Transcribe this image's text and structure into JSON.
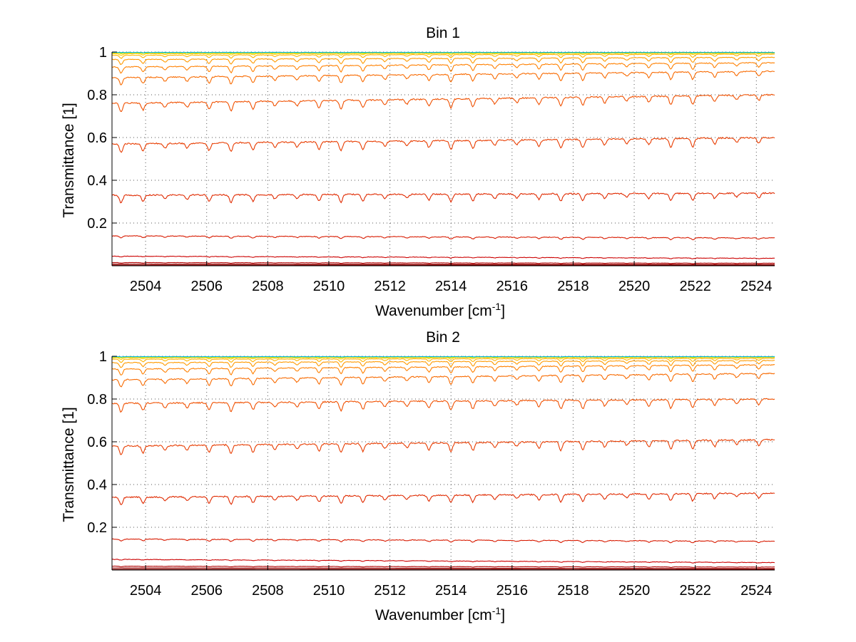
{
  "chart_data": [
    {
      "type": "line",
      "title": "Bin 1",
      "xlabel_main": "Wavenumber [cm",
      "xlabel_sup": "-1",
      "xlabel_end": "]",
      "ylabel": "Transmittance [1]",
      "xlim": [
        2502.9,
        2524.6
      ],
      "ylim": [
        0.0,
        1.0
      ],
      "xticks": [
        2504,
        2506,
        2508,
        2510,
        2512,
        2514,
        2516,
        2518,
        2520,
        2522,
        2524
      ],
      "yticks": [
        0.2,
        0.4,
        0.6,
        0.8,
        1
      ],
      "ytick_labels": [
        "0.2",
        "0.4",
        "0.6",
        "0.8",
        "1"
      ],
      "grid": true,
      "series": [
        {
          "start": 0.003,
          "end": 0.003,
          "amp": 0.0,
          "noise": 0.0,
          "color": "#800000"
        },
        {
          "start": 0.008,
          "end": 0.006,
          "amp": 0.0,
          "noise": 0.0,
          "color": "#9a0000"
        },
        {
          "start": 0.015,
          "end": 0.012,
          "amp": 0.002,
          "noise": 0.001,
          "color": "#b00000"
        },
        {
          "start": 0.045,
          "end": 0.035,
          "amp": 0.003,
          "noise": 0.002,
          "color": "#cc0000"
        },
        {
          "start": 0.14,
          "end": 0.13,
          "amp": 0.008,
          "noise": 0.003,
          "color": "#d81a00"
        },
        {
          "start": 0.33,
          "end": 0.34,
          "amp": 0.03,
          "noise": 0.006,
          "color": "#e02a00"
        },
        {
          "start": 0.57,
          "end": 0.6,
          "amp": 0.035,
          "noise": 0.006,
          "color": "#e83c00"
        },
        {
          "start": 0.76,
          "end": 0.8,
          "amp": 0.035,
          "noise": 0.006,
          "color": "#f05000"
        },
        {
          "start": 0.88,
          "end": 0.91,
          "amp": 0.03,
          "noise": 0.005,
          "color": "#f86a00"
        },
        {
          "start": 0.93,
          "end": 0.95,
          "amp": 0.025,
          "noise": 0.004,
          "color": "#ff8000"
        },
        {
          "start": 0.965,
          "end": 0.975,
          "amp": 0.02,
          "noise": 0.003,
          "color": "#ff9a00"
        },
        {
          "start": 0.985,
          "end": 0.99,
          "amp": 0.012,
          "noise": 0.002,
          "color": "#ffb400"
        },
        {
          "start": 0.992,
          "end": 0.995,
          "amp": 0.006,
          "noise": 0.002,
          "color": "#ffcc00"
        },
        {
          "start": 0.996,
          "end": 0.997,
          "amp": 0.003,
          "noise": 0.002,
          "color": "#e6e600"
        },
        {
          "start": 0.998,
          "end": 0.998,
          "amp": 0.002,
          "noise": 0.002,
          "color": "#a8e000"
        },
        {
          "start": 0.999,
          "end": 0.999,
          "amp": 0.001,
          "noise": 0.003,
          "color": "#00b8e8"
        }
      ]
    },
    {
      "type": "line",
      "title": "Bin 2",
      "xlabel_main": "Wavenumber [cm",
      "xlabel_sup": "-1",
      "xlabel_end": "]",
      "ylabel": "Transmittance [1]",
      "xlim": [
        2502.9,
        2524.6
      ],
      "ylim": [
        0.0,
        1.0
      ],
      "xticks": [
        2504,
        2506,
        2508,
        2510,
        2512,
        2514,
        2516,
        2518,
        2520,
        2522,
        2524
      ],
      "yticks": [
        0.2,
        0.4,
        0.6,
        0.8,
        1
      ],
      "ytick_labels": [
        "0.2",
        "0.4",
        "0.6",
        "0.8",
        "1"
      ],
      "grid": true,
      "series": [
        {
          "start": 0.004,
          "end": 0.003,
          "amp": 0.0,
          "noise": 0.0,
          "color": "#800000"
        },
        {
          "start": 0.01,
          "end": 0.007,
          "amp": 0.0,
          "noise": 0.0,
          "color": "#9a0000"
        },
        {
          "start": 0.018,
          "end": 0.014,
          "amp": 0.002,
          "noise": 0.001,
          "color": "#b00000"
        },
        {
          "start": 0.05,
          "end": 0.035,
          "amp": 0.003,
          "noise": 0.002,
          "color": "#cc0000"
        },
        {
          "start": 0.145,
          "end": 0.135,
          "amp": 0.008,
          "noise": 0.003,
          "color": "#d81a00"
        },
        {
          "start": 0.34,
          "end": 0.36,
          "amp": 0.03,
          "noise": 0.006,
          "color": "#e02a00"
        },
        {
          "start": 0.58,
          "end": 0.61,
          "amp": 0.035,
          "noise": 0.006,
          "color": "#e83c00"
        },
        {
          "start": 0.78,
          "end": 0.8,
          "amp": 0.035,
          "noise": 0.006,
          "color": "#f05000"
        },
        {
          "start": 0.89,
          "end": 0.92,
          "amp": 0.03,
          "noise": 0.005,
          "color": "#f86a00"
        },
        {
          "start": 0.94,
          "end": 0.96,
          "amp": 0.025,
          "noise": 0.004,
          "color": "#ff8000"
        },
        {
          "start": 0.97,
          "end": 0.98,
          "amp": 0.02,
          "noise": 0.003,
          "color": "#ff9a00"
        },
        {
          "start": 0.986,
          "end": 0.99,
          "amp": 0.012,
          "noise": 0.002,
          "color": "#ffb400"
        },
        {
          "start": 0.993,
          "end": 0.995,
          "amp": 0.006,
          "noise": 0.002,
          "color": "#ffcc00"
        },
        {
          "start": 0.996,
          "end": 0.997,
          "amp": 0.003,
          "noise": 0.002,
          "color": "#e6e600"
        },
        {
          "start": 0.998,
          "end": 0.998,
          "amp": 0.002,
          "noise": 0.002,
          "color": "#a8e000"
        },
        {
          "start": 0.999,
          "end": 0.999,
          "amp": 0.001,
          "noise": 0.003,
          "color": "#00b8e8"
        }
      ]
    }
  ]
}
